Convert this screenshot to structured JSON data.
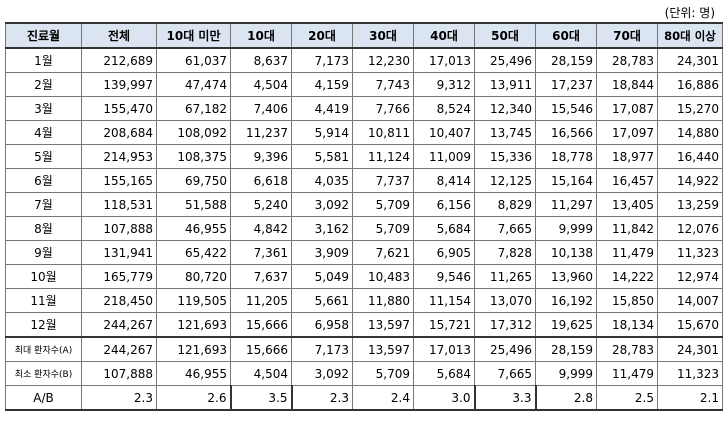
{
  "unit_label": "(단위: 명)",
  "headers": [
    "진료월",
    "전체",
    "10대 미만",
    "10대",
    "20대",
    "30대",
    "40대",
    "50대",
    "60대",
    "70대",
    "80대 이상"
  ],
  "rows": [
    {
      "label": "1월",
      "values": [
        "212,689",
        "61,037",
        "8,637",
        "7,173",
        "12,230",
        "17,013",
        "25,496",
        "28,159",
        "28,783",
        "24,301"
      ]
    },
    {
      "label": "2월",
      "values": [
        "139,997",
        "47,474",
        "4,504",
        "4,159",
        "7,743",
        "9,312",
        "13,911",
        "17,237",
        "18,844",
        "16,886"
      ]
    },
    {
      "label": "3월",
      "values": [
        "155,470",
        "67,182",
        "7,406",
        "4,419",
        "7,766",
        "8,524",
        "12,340",
        "15,546",
        "17,087",
        "15,270"
      ]
    },
    {
      "label": "4월",
      "values": [
        "208,684",
        "108,092",
        "11,237",
        "5,914",
        "10,811",
        "10,407",
        "13,745",
        "16,566",
        "17,097",
        "14,880"
      ]
    },
    {
      "label": "5월",
      "values": [
        "214,953",
        "108,375",
        "9,396",
        "5,581",
        "11,124",
        "11,009",
        "15,336",
        "18,778",
        "18,977",
        "16,440"
      ]
    },
    {
      "label": "6월",
      "values": [
        "155,165",
        "69,750",
        "6,618",
        "4,035",
        "7,737",
        "8,414",
        "12,125",
        "15,164",
        "16,457",
        "14,922"
      ]
    },
    {
      "label": "7월",
      "values": [
        "118,531",
        "51,588",
        "5,240",
        "3,092",
        "5,709",
        "6,156",
        "8,829",
        "11,297",
        "13,405",
        "13,259"
      ]
    },
    {
      "label": "8월",
      "values": [
        "107,888",
        "46,955",
        "4,842",
        "3,162",
        "5,709",
        "5,684",
        "7,665",
        "9,999",
        "11,842",
        "12,076"
      ]
    },
    {
      "label": "9월",
      "values": [
        "131,941",
        "65,422",
        "7,361",
        "3,909",
        "7,621",
        "6,905",
        "7,828",
        "10,138",
        "11,479",
        "11,323"
      ]
    },
    {
      "label": "10월",
      "values": [
        "165,779",
        "80,720",
        "7,637",
        "5,049",
        "10,483",
        "9,546",
        "11,265",
        "13,960",
        "14,222",
        "12,974"
      ]
    },
    {
      "label": "11월",
      "values": [
        "218,450",
        "119,505",
        "11,205",
        "5,661",
        "11,880",
        "11,154",
        "13,070",
        "16,192",
        "15,850",
        "14,007"
      ]
    },
    {
      "label": "12월",
      "values": [
        "244,267",
        "121,693",
        "15,666",
        "6,958",
        "13,597",
        "15,721",
        "17,312",
        "19,625",
        "18,134",
        "15,670"
      ]
    }
  ],
  "summary": [
    {
      "label": "최대 환자수(A)",
      "values": [
        "244,267",
        "121,693",
        "15,666",
        "7,173",
        "13,597",
        "17,013",
        "25,496",
        "28,159",
        "28,783",
        "24,301"
      ]
    },
    {
      "label": "최소 환자수(B)",
      "values": [
        "107,888",
        "46,955",
        "4,504",
        "3,092",
        "5,709",
        "5,684",
        "7,665",
        "9,999",
        "11,479",
        "11,323"
      ]
    },
    {
      "label": "A/B",
      "values": [
        "2.3",
        "2.6",
        "3.5",
        "2.3",
        "2.4",
        "3.0",
        "3.3",
        "2.8",
        "2.5",
        "2.1"
      ]
    }
  ]
}
